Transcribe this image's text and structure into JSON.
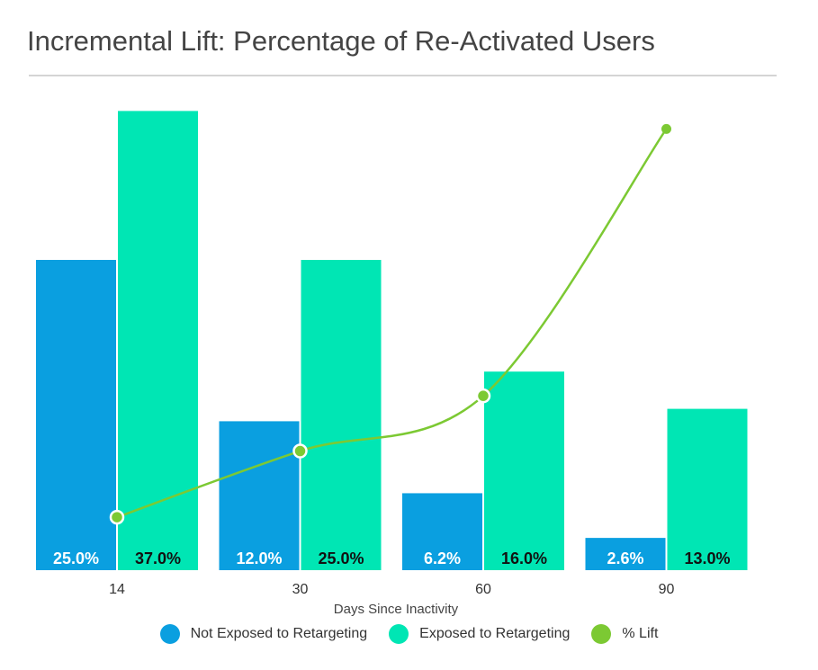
{
  "chart_data": {
    "type": "bar",
    "title": "Incremental Lift: Percentage of Re-Activated Users",
    "xlabel": "Days Since Inactivity",
    "ylabel": "",
    "categories": [
      "14",
      "30",
      "60",
      "90"
    ],
    "series": [
      {
        "name": "Not Exposed to Retargeting",
        "values": [
          25.0,
          12.0,
          6.2,
          2.6
        ],
        "labels": [
          "25.0%",
          "12.0%",
          "6.2%",
          "2.6%"
        ],
        "color": "#0a9fe0",
        "label_color": "#ffffff"
      },
      {
        "name": "Exposed to Retargeting",
        "values": [
          37.0,
          25.0,
          16.0,
          13.0
        ],
        "labels": [
          "37.0%",
          "25.0%",
          "16.0%",
          "13.0%"
        ],
        "color": "#00e6b4",
        "label_color": "#111111"
      }
    ],
    "lift_series": {
      "name": "% Lift",
      "type": "line",
      "values": [
        48,
        108,
        158,
        400
      ],
      "color": "#7cc933"
    },
    "ylim": [
      0,
      40
    ],
    "lift_ylim": [
      0,
      450
    ],
    "grid": false,
    "legend_position": "bottom"
  }
}
